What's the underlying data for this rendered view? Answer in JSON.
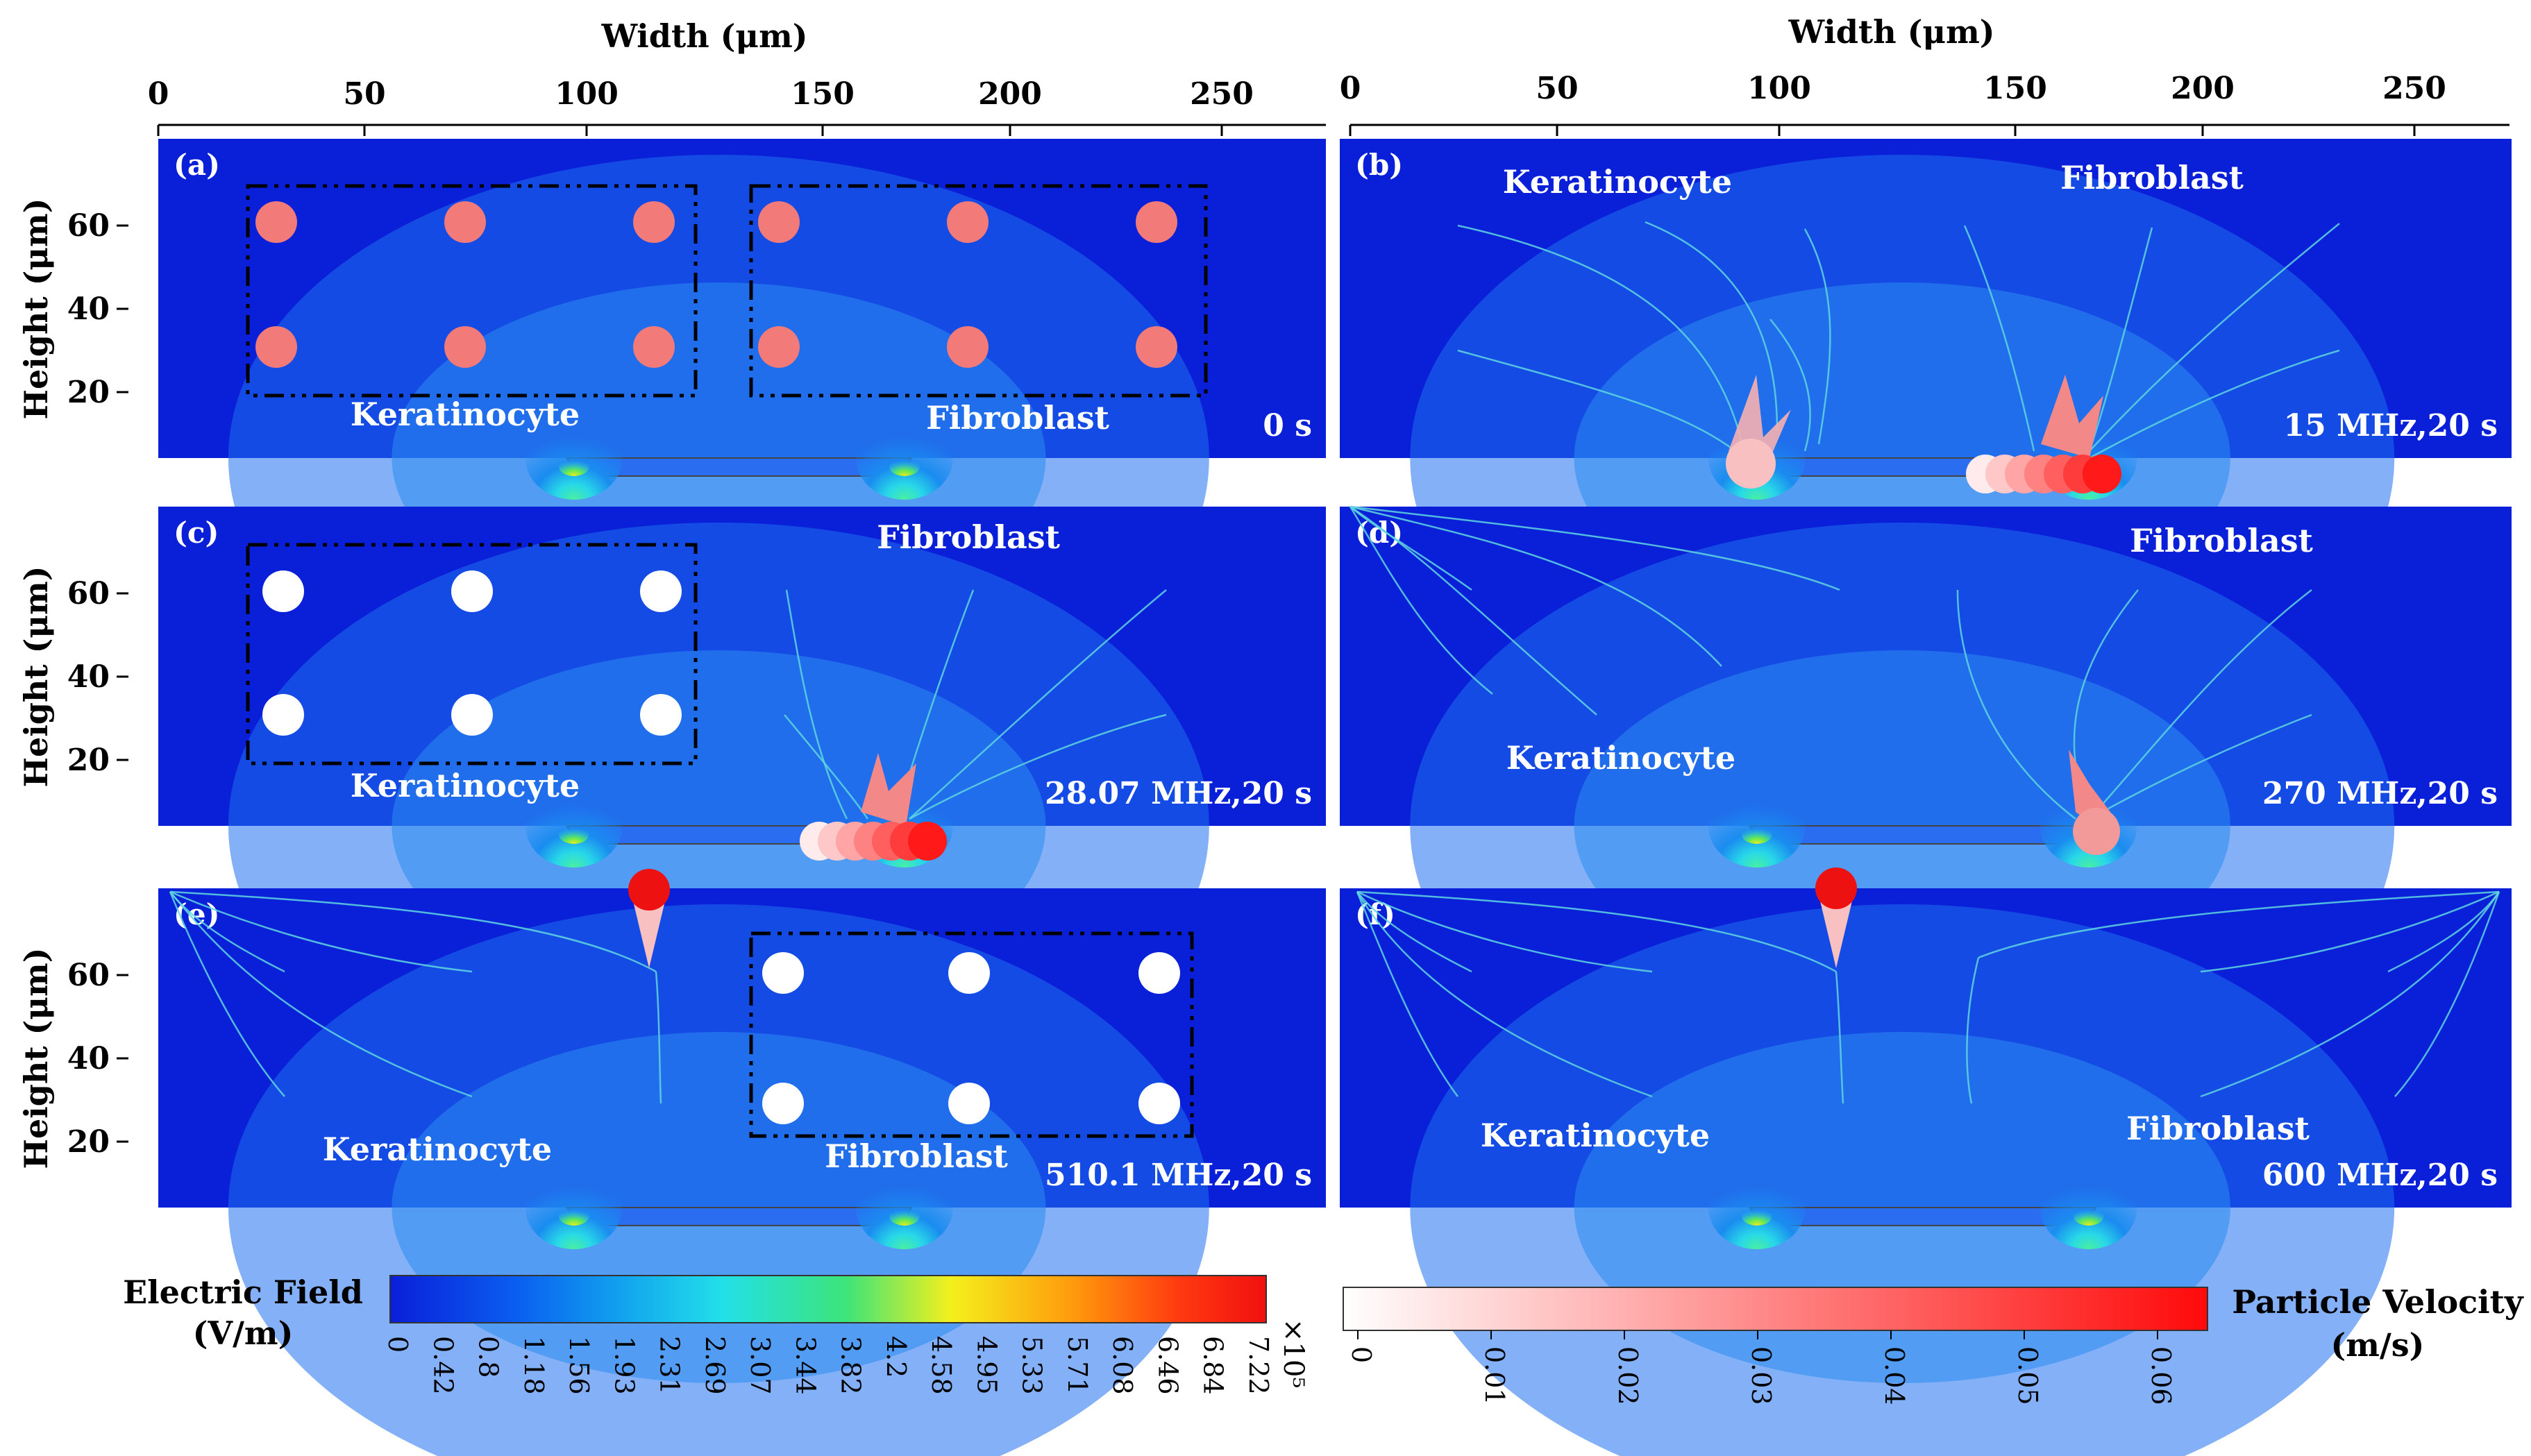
{
  "axes": {
    "width_label": "Width (μm)",
    "height_label": "Height  (μm)",
    "x_ticks": [
      "0",
      "50",
      "100",
      "150",
      "200",
      "250"
    ],
    "y_ticks": [
      "60",
      "40",
      "20"
    ]
  },
  "panels": [
    {
      "letter": "(a)",
      "condition": "0 s",
      "labels": [
        "Keratinocyte",
        "Fibroblast"
      ]
    },
    {
      "letter": "(b)",
      "condition": "15 MHz,20 s",
      "labels": [
        "Keratinocyte",
        "Fibroblast"
      ]
    },
    {
      "letter": "(c)",
      "condition": "28.07 MHz,20 s",
      "labels": [
        "Keratinocyte",
        "Fibroblast"
      ]
    },
    {
      "letter": "(d)",
      "condition": "270 MHz,20 s",
      "labels": [
        "Keratinocyte",
        "Fibroblast"
      ]
    },
    {
      "letter": "(e)",
      "condition": "510.1 MHz,20 s",
      "labels": [
        "Keratinocyte",
        "Fibroblast"
      ]
    },
    {
      "letter": "(f)",
      "condition": "600 MHz,20 s",
      "labels": [
        "Keratinocyte",
        "Fibroblast"
      ]
    }
  ],
  "electric_field_colorbar": {
    "title_line1": "Electric Field",
    "title_line2": "(V/m)",
    "ticks": [
      "0",
      "0.42",
      "0.8",
      "1.18",
      "1.56",
      "1.93",
      "2.31",
      "2.69",
      "3.07",
      "3.44",
      "3.82",
      "4.2",
      "4.58",
      "4.95",
      "5.33",
      "5.71",
      "6.08",
      "6.46",
      "6.84",
      "7.22"
    ],
    "multiplier": "×10⁵",
    "colors": [
      "#0a1fd8",
      "#0a5cf0",
      "#12a6ee",
      "#22e0e8",
      "#3ce47a",
      "#f4f01c",
      "#ff9a0c",
      "#ff3a10",
      "#f01010"
    ]
  },
  "velocity_colorbar": {
    "title_line1": "Particle Velocity",
    "title_line2": "(m/s)",
    "ticks": [
      "0",
      "0.01",
      "0.02",
      "0.03",
      "0.04",
      "0.05",
      "0.06"
    ],
    "colors": [
      "#ffffff",
      "#ff0a0a"
    ]
  },
  "colors": {
    "field_dark": "#0a1fd8",
    "field_mid": "#1f6ff0",
    "field_glow": "#22e0e8",
    "particle_initial": "#f27a78",
    "particle_white": "#ffffff",
    "particle_fast": "#ee1111",
    "streamline": "#5fd6e0"
  }
}
